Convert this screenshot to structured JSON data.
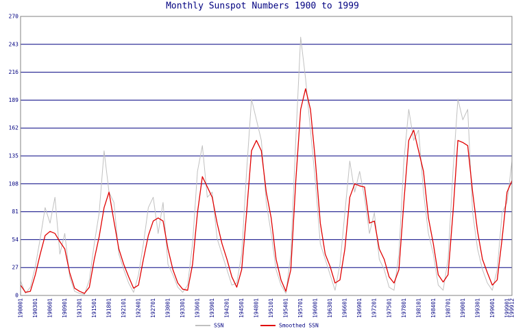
{
  "chart_data": {
    "type": "line",
    "title": "Monthly Sunspot Numbers 1900 to 1999",
    "categories": [
      "190001",
      null,
      null,
      "190301",
      null,
      null,
      "190601",
      null,
      null,
      "190901",
      null,
      null,
      "191201",
      null,
      null,
      "191501",
      null,
      null,
      "191801",
      null,
      null,
      "192101",
      null,
      null,
      "192401",
      null,
      null,
      "192701",
      null,
      null,
      "193001",
      null,
      null,
      "193301",
      null,
      null,
      "193601",
      null,
      null,
      "193901",
      null,
      null,
      "194201",
      null,
      null,
      "194501",
      null,
      null,
      "194801",
      null,
      null,
      "195101",
      null,
      null,
      "195401",
      null,
      null,
      "195701",
      null,
      null,
      "196001",
      null,
      null,
      "196301",
      null,
      null,
      "196601",
      null,
      null,
      "196901",
      null,
      null,
      "197201",
      null,
      null,
      "197501",
      null,
      null,
      "197801",
      null,
      null,
      "198101",
      null,
      null,
      "198401",
      null,
      null,
      "198701",
      null,
      null,
      "199001",
      null,
      null,
      "199301",
      null,
      null,
      "199601",
      null,
      null,
      "199901",
      "199912"
    ],
    "series": [
      {
        "name": "SSN",
        "color": "#c0c0c0",
        "values": [
          14,
          2,
          8,
          28,
          55,
          85,
          70,
          95,
          40,
          60,
          18,
          4,
          2,
          1,
          15,
          50,
          80,
          140,
          100,
          90,
          40,
          25,
          12,
          3,
          20,
          50,
          85,
          95,
          60,
          90,
          30,
          20,
          8,
          3,
          10,
          50,
          120,
          145,
          95,
          100,
          55,
          40,
          25,
          10,
          12,
          40,
          120,
          190,
          170,
          150,
          90,
          60,
          25,
          10,
          2,
          40,
          150,
          250,
          210,
          160,
          110,
          50,
          35,
          20,
          5,
          30,
          80,
          130,
          100,
          120,
          95,
          60,
          80,
          35,
          25,
          8,
          5,
          40,
          130,
          180,
          150,
          160,
          100,
          60,
          40,
          10,
          5,
          35,
          120,
          190,
          170,
          180,
          80,
          45,
          25,
          12,
          5,
          25,
          80,
          90,
          130
        ]
      },
      {
        "name": "Smoothed SSN",
        "color": "#e00000",
        "values": [
          10,
          3,
          4,
          20,
          40,
          58,
          62,
          60,
          52,
          45,
          22,
          7,
          4,
          2,
          8,
          35,
          57,
          85,
          100,
          72,
          45,
          30,
          18,
          7,
          10,
          35,
          58,
          72,
          75,
          72,
          45,
          25,
          12,
          6,
          5,
          30,
          80,
          115,
          105,
          95,
          70,
          50,
          35,
          18,
          8,
          25,
          80,
          140,
          150,
          140,
          100,
          75,
          35,
          15,
          4,
          25,
          110,
          180,
          200,
          180,
          130,
          70,
          40,
          28,
          12,
          15,
          45,
          95,
          108,
          106,
          105,
          70,
          72,
          45,
          35,
          18,
          12,
          25,
          90,
          150,
          160,
          140,
          120,
          75,
          50,
          20,
          13,
          20,
          80,
          150,
          148,
          145,
          100,
          62,
          35,
          22,
          10,
          15,
          55,
          100,
          111
        ]
      }
    ],
    "ylim": [
      0,
      270
    ],
    "yticks": [
      0,
      27,
      54,
      81,
      108,
      135,
      162,
      189,
      216,
      243,
      270
    ],
    "grid": true
  }
}
